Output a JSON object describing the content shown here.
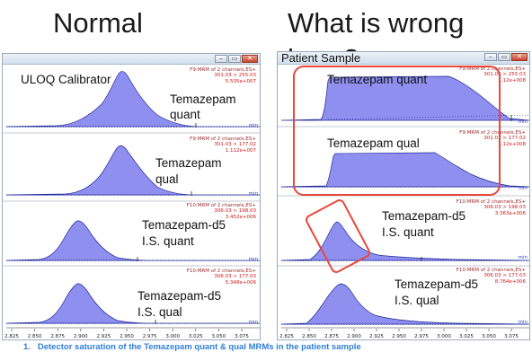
{
  "headings": {
    "left": "Normal",
    "right": "What is wrong here?"
  },
  "left_window": {
    "window_buttons": {
      "minimize": "–",
      "restore": "▭",
      "close": "✕"
    },
    "panels": [
      {
        "labels": [
          "ULOQ  Calibrator",
          "Temazepam",
          "quant"
        ],
        "mrm": [
          "F9:MRM of 2 channels,ES+",
          "301.03 > 255.03",
          "5.505e+007"
        ],
        "min": "min"
      },
      {
        "labels": [
          "Temazepam",
          "qual"
        ],
        "mrm": [
          "F9:MRM of 2 channels,ES+",
          "301.03 > 177.02",
          "1.112e+007"
        ],
        "min": "min"
      },
      {
        "labels": [
          "Temazepam-d5",
          "I.S. quant"
        ],
        "mrm": [
          "F10:MRM of 2 channels,ES+",
          "306.03 > 198.03",
          "3.452e+006"
        ],
        "min": "min"
      },
      {
        "labels": [
          "Temazepam-d5",
          "I.S. qual"
        ],
        "mrm": [
          "F10:MRM of 2 channels,ES+",
          "306.03 > 177.03",
          "5.348e+006"
        ],
        "min": "min"
      }
    ],
    "axis_ticks": [
      "2.825",
      "2.850",
      "2.875",
      "2.900",
      "2.925",
      "2.950",
      "2.975",
      "3.000",
      "3.025",
      "3.050",
      "3.075"
    ]
  },
  "right_window": {
    "title": "Patient Sample",
    "window_buttons": {
      "minimize": "–",
      "restore": "▭",
      "close": "✕"
    },
    "panels": [
      {
        "labels": [
          "Temazepam quant"
        ],
        "mrm": [
          "F9:MRM of 2 channels,ES+",
          "301.03 > 255.03",
          "1.12e+008"
        ],
        "min": "min"
      },
      {
        "labels": [
          "Temazepam qual"
        ],
        "mrm": [
          "F9:MRM of 2 channels,ES+",
          "301.03 > 177.02",
          "1.12e+008"
        ],
        "min": "min"
      },
      {
        "labels": [
          "Temazepam-d5",
          "I.S. quant"
        ],
        "mrm": [
          "F10:MRM of 2 channels,ES+",
          "306.03 > 198.03",
          "3.363e+006"
        ],
        "min": "min"
      },
      {
        "labels": [
          "Temazepam-d5",
          "I.S. qual"
        ],
        "mrm": [
          "F10:MRM of 2 channels,ES+",
          "306.03 > 177.03",
          "8.764e+006"
        ],
        "min": "min"
      }
    ],
    "axis_ticks": [
      "2.825",
      "2.850",
      "2.875",
      "2.900",
      "2.925",
      "2.950",
      "2.975",
      "3.000",
      "3.025",
      "3.050",
      "3.075"
    ]
  },
  "footnote": {
    "number": "1.",
    "text": "Detector saturation of the Temazepam quant & qual MRMs in the patient sample"
  },
  "colors": {
    "peak_fill": "#8f8fef",
    "peak_stroke": "#1f2a9a",
    "callout": "#e8473a",
    "mrm_text": "#d01818",
    "footnote": "#2f7fd4"
  }
}
